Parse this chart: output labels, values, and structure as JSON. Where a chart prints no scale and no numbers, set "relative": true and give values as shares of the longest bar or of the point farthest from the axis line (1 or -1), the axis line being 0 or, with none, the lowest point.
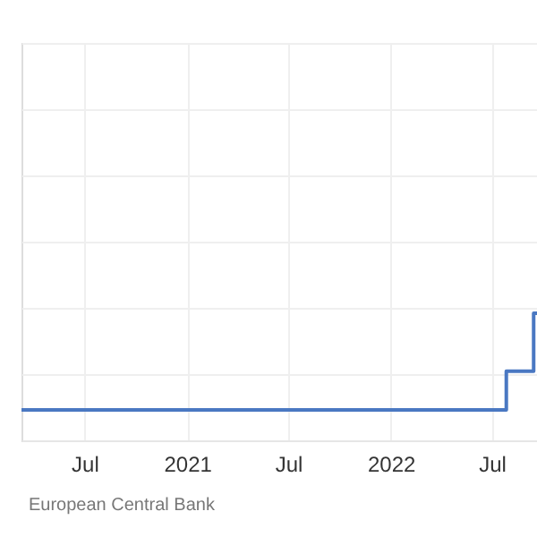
{
  "chart_data": {
    "type": "step",
    "relative": true,
    "grid": true,
    "x": [
      "2020-03-10",
      "2022-07-27",
      "2022-09-14",
      "2022-09-20"
    ],
    "series": [
      {
        "color": "#4a78c2",
        "values": [
          0,
          0.4,
          1,
          1
        ]
      }
    ],
    "xlim": [
      "2020-03-10",
      "2022-09-20"
    ],
    "xticks": [
      {
        "value": "2020-07-01",
        "label": "Jul"
      },
      {
        "value": "2021-01-01",
        "label": "2021"
      },
      {
        "value": "2021-07-01",
        "label": "Jul"
      },
      {
        "value": "2022-01-01",
        "label": "2022"
      },
      {
        "value": "2022-07-01",
        "label": "Jul"
      }
    ],
    "annotations": [
      "European Central Bank"
    ]
  }
}
